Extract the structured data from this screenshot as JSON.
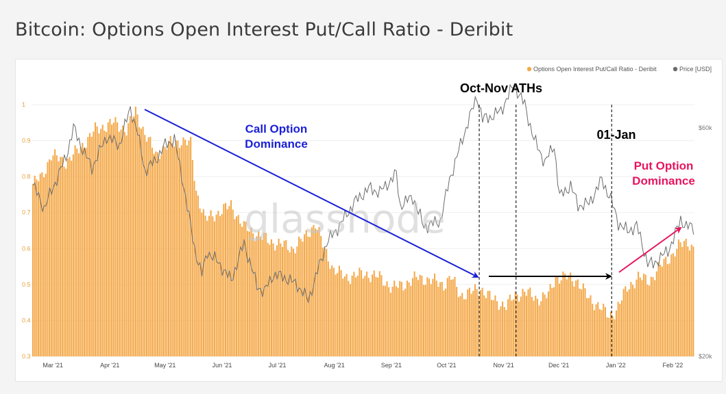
{
  "title": "Bitcoin: Options Open Interest Put/Call Ratio - Deribit",
  "watermark": "glassnode",
  "colors": {
    "bar": "#f4a94a",
    "price": "#6b6b6b",
    "call_arrow": "#1a1fd6",
    "put_arrow": "#e8145f",
    "neutral_arrow": "#000000",
    "left_axis_tick": "#e8a03c"
  },
  "chart_data": {
    "type": "bar",
    "left_axis_ticks": [
      "1",
      "0.9",
      "0.8",
      "0.7",
      "0.6",
      "0.5",
      "0.4",
      "0.3"
    ],
    "right_axis_ticks": [
      "$60k",
      "$20k"
    ],
    "x_tick_labels": [
      "Mar '21",
      "Apr '21",
      "May '21",
      "Jun '21",
      "Jul '21",
      "Aug '21",
      "Sep '21",
      "Oct '21",
      "Nov '21",
      "Dec '21",
      "Jan '22",
      "Feb '22"
    ],
    "legend": [
      "Options Open Interest Put/Call Ratio - Deribit",
      "Price [USD]"
    ],
    "ylim_ratio": [
      0.3,
      1.0
    ],
    "ylim_price_usd": [
      20000,
      60000
    ],
    "series": [
      {
        "name": "Options Open Interest Put/Call Ratio - Deribit",
        "type": "bar",
        "anchors": [
          [
            "2021-02-20",
            0.78
          ],
          [
            "2021-02-25",
            0.8
          ],
          [
            "2021-03-02",
            0.86
          ],
          [
            "2021-03-10",
            0.84
          ],
          [
            "2021-03-18",
            0.88
          ],
          [
            "2021-03-26",
            0.93
          ],
          [
            "2021-04-05",
            0.95
          ],
          [
            "2021-04-12",
            0.93
          ],
          [
            "2021-04-17",
            0.98
          ],
          [
            "2021-04-22",
            0.92
          ],
          [
            "2021-04-28",
            0.86
          ],
          [
            "2021-05-05",
            0.89
          ],
          [
            "2021-05-12",
            0.9
          ],
          [
            "2021-05-17",
            0.89
          ],
          [
            "2021-05-20",
            0.76
          ],
          [
            "2021-05-25",
            0.68
          ],
          [
            "2021-06-01",
            0.7
          ],
          [
            "2021-06-08",
            0.72
          ],
          [
            "2021-06-15",
            0.66
          ],
          [
            "2021-06-22",
            0.64
          ],
          [
            "2021-06-29",
            0.62
          ],
          [
            "2021-07-06",
            0.61
          ],
          [
            "2021-07-12",
            0.6
          ],
          [
            "2021-07-18",
            0.63
          ],
          [
            "2021-07-24",
            0.67
          ],
          [
            "2021-07-28",
            0.61
          ],
          [
            "2021-08-03",
            0.54
          ],
          [
            "2021-08-10",
            0.52
          ],
          [
            "2021-08-20",
            0.53
          ],
          [
            "2021-08-28",
            0.52
          ],
          [
            "2021-09-04",
            0.49
          ],
          [
            "2021-09-10",
            0.5
          ],
          [
            "2021-09-18",
            0.52
          ],
          [
            "2021-09-26",
            0.51
          ],
          [
            "2021-10-02",
            0.5
          ],
          [
            "2021-10-06",
            0.52
          ],
          [
            "2021-10-11",
            0.47
          ],
          [
            "2021-10-18",
            0.48
          ],
          [
            "2021-10-22",
            0.49
          ],
          [
            "2021-10-28",
            0.46
          ],
          [
            "2021-11-05",
            0.44
          ],
          [
            "2021-11-10",
            0.47
          ],
          [
            "2021-11-15",
            0.48
          ],
          [
            "2021-11-22",
            0.46
          ],
          [
            "2021-11-28",
            0.47
          ],
          [
            "2021-12-02",
            0.52
          ],
          [
            "2021-12-08",
            0.52
          ],
          [
            "2021-12-14",
            0.51
          ],
          [
            "2021-12-20",
            0.46
          ],
          [
            "2021-12-26",
            0.44
          ],
          [
            "2021-12-31",
            0.41
          ],
          [
            "2022-01-04",
            0.43
          ],
          [
            "2022-01-10",
            0.49
          ],
          [
            "2022-01-16",
            0.52
          ],
          [
            "2022-01-22",
            0.51
          ],
          [
            "2022-01-28",
            0.55
          ],
          [
            "2022-02-03",
            0.58
          ],
          [
            "2022-02-08",
            0.61
          ],
          [
            "2022-02-12",
            0.62
          ],
          [
            "2022-02-15",
            0.6
          ]
        ]
      },
      {
        "name": "Price [USD]",
        "type": "line",
        "anchors": [
          [
            "2021-02-20",
            50000
          ],
          [
            "2021-02-26",
            46000
          ],
          [
            "2021-03-02",
            49000
          ],
          [
            "2021-03-10",
            55000
          ],
          [
            "2021-03-14",
            60000
          ],
          [
            "2021-03-18",
            57000
          ],
          [
            "2021-03-24",
            53000
          ],
          [
            "2021-04-01",
            58500
          ],
          [
            "2021-04-08",
            57000
          ],
          [
            "2021-04-14",
            63500
          ],
          [
            "2021-04-18",
            59000
          ],
          [
            "2021-04-22",
            52500
          ],
          [
            "2021-04-28",
            54500
          ],
          [
            "2021-05-03",
            57000
          ],
          [
            "2021-05-08",
            58000
          ],
          [
            "2021-05-13",
            50000
          ],
          [
            "2021-05-19",
            39000
          ],
          [
            "2021-05-23",
            34500
          ],
          [
            "2021-05-26",
            38500
          ],
          [
            "2021-06-01",
            36500
          ],
          [
            "2021-06-08",
            33500
          ],
          [
            "2021-06-15",
            40000
          ],
          [
            "2021-06-22",
            32500
          ],
          [
            "2021-06-26",
            31500
          ],
          [
            "2021-07-01",
            34500
          ],
          [
            "2021-07-07",
            34000
          ],
          [
            "2021-07-14",
            32700
          ],
          [
            "2021-07-20",
            30000
          ],
          [
            "2021-07-25",
            35000
          ],
          [
            "2021-07-30",
            40000
          ],
          [
            "2021-08-06",
            43000
          ],
          [
            "2021-08-14",
            47000
          ],
          [
            "2021-08-22",
            49500
          ],
          [
            "2021-08-28",
            48800
          ],
          [
            "2021-09-06",
            52000
          ],
          [
            "2021-09-08",
            46500
          ],
          [
            "2021-09-15",
            48000
          ],
          [
            "2021-09-21",
            42800
          ],
          [
            "2021-09-30",
            43800
          ],
          [
            "2021-10-05",
            51000
          ],
          [
            "2021-10-15",
            61000
          ],
          [
            "2021-10-20",
            65500
          ],
          [
            "2021-10-23",
            61500
          ],
          [
            "2021-10-28",
            62000
          ],
          [
            "2021-11-02",
            63000
          ],
          [
            "2021-11-09",
            67500
          ],
          [
            "2021-11-15",
            64000
          ],
          [
            "2021-11-20",
            58000
          ],
          [
            "2021-11-26",
            54000
          ],
          [
            "2021-12-01",
            57000
          ],
          [
            "2021-12-04",
            48000
          ],
          [
            "2021-12-10",
            50000
          ],
          [
            "2021-12-14",
            46500
          ],
          [
            "2021-12-20",
            46800
          ],
          [
            "2021-12-27",
            51000
          ],
          [
            "2022-01-01",
            47500
          ],
          [
            "2022-01-05",
            43500
          ],
          [
            "2022-01-10",
            42000
          ],
          [
            "2022-01-15",
            43000
          ],
          [
            "2022-01-21",
            36500
          ],
          [
            "2022-01-24",
            36200
          ],
          [
            "2022-01-28",
            37500
          ],
          [
            "2022-02-01",
            38500
          ],
          [
            "2022-02-05",
            41500
          ],
          [
            "2022-02-08",
            44000
          ],
          [
            "2022-02-11",
            43000
          ],
          [
            "2022-02-15",
            42500
          ]
        ]
      }
    ],
    "annotations": [
      {
        "id": "ath",
        "text": "Oct-Nov ATHs",
        "color": "#000000"
      },
      {
        "id": "call",
        "lines": [
          "Call Option",
          "Dominance"
        ],
        "color": "#1a1fd6"
      },
      {
        "id": "jan",
        "text": "01-Jan",
        "color": "#000000"
      },
      {
        "id": "put",
        "lines": [
          "Put Option",
          "Dominance"
        ],
        "color": "#e8145f"
      }
    ],
    "vertical_markers": [
      "2021-10-21",
      "2021-11-10",
      "2022-01-01"
    ]
  }
}
